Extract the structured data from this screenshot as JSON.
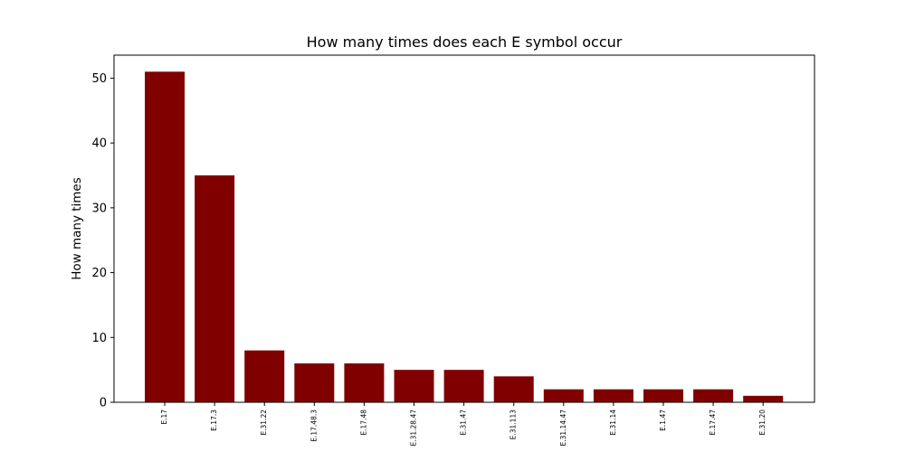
{
  "chart_data": {
    "type": "bar",
    "title": "How many times does each E symbol occur",
    "xlabel": "",
    "ylabel": "How many times",
    "categories": [
      "E.17",
      "E.17.3",
      "E.31.22",
      "E.17.48.3",
      "E.17.48",
      "E.31.28.47",
      "E.31.47",
      "E.31.113",
      "E.31.14.47",
      "E.31.14",
      "E.1.47",
      "E.17.47",
      "E.31.20"
    ],
    "values": [
      51,
      35,
      8,
      6,
      6,
      5,
      5,
      4,
      2,
      2,
      2,
      2,
      1
    ],
    "ylim": [
      0,
      53.55
    ],
    "yticks": [
      "0",
      "10",
      "20",
      "30",
      "40",
      "50"
    ],
    "bar_color": "#800000",
    "grid": false,
    "legend": "none"
  }
}
